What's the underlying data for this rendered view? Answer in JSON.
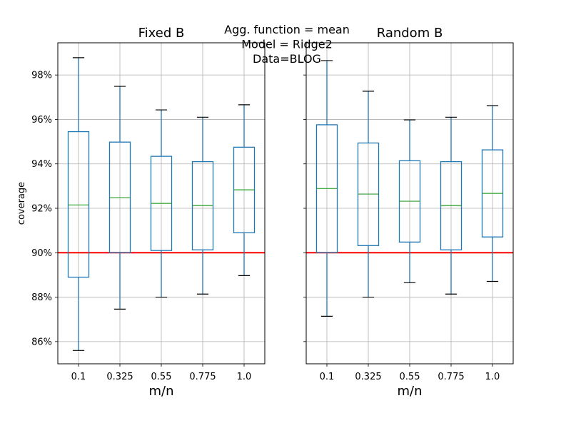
{
  "chart_data": {
    "type": "box",
    "suptitle": [
      "Agg. function = mean",
      "Model = Ridge2",
      "Data=BLOG"
    ],
    "ylabel": "coverage",
    "ylim": [
      85,
      99.45
    ],
    "yticks": [
      86,
      88,
      90,
      92,
      94,
      96,
      98
    ],
    "ytick_labels": [
      "86%",
      "88%",
      "90%",
      "92%",
      "94%",
      "96%",
      "98%"
    ],
    "grid": true,
    "reference_line": {
      "value": 90,
      "color": "#ff0000"
    },
    "colors": {
      "box": "#1f77b4",
      "median": "#2ca02c",
      "cap": "#000000",
      "grid": "#b0b0b0"
    },
    "panels": [
      {
        "title": "Fixed B",
        "xlabel": "m/n",
        "categories": [
          "0.1",
          "0.325",
          "0.55",
          "0.775",
          "1.0"
        ],
        "boxes": [
          {
            "whislo": 85.6,
            "q1": 88.9,
            "med": 92.15,
            "q3": 95.45,
            "whishi": 98.78
          },
          {
            "whislo": 87.46,
            "q1": 90.0,
            "med": 92.48,
            "q3": 94.98,
            "whishi": 97.49
          },
          {
            "whislo": 88.0,
            "q1": 90.1,
            "med": 92.22,
            "q3": 94.34,
            "whishi": 96.43
          },
          {
            "whislo": 88.14,
            "q1": 90.13,
            "med": 92.12,
            "q3": 94.1,
            "whishi": 96.1
          },
          {
            "whislo": 88.97,
            "q1": 90.9,
            "med": 92.83,
            "q3": 94.75,
            "whishi": 96.66
          }
        ]
      },
      {
        "title": "Random B",
        "xlabel": "m/n",
        "categories": [
          "0.1",
          "0.325",
          "0.55",
          "0.775",
          "1.0"
        ],
        "boxes": [
          {
            "whislo": 87.14,
            "q1": 90.0,
            "med": 92.89,
            "q3": 95.76,
            "whishi": 98.65
          },
          {
            "whislo": 88.0,
            "q1": 90.32,
            "med": 92.64,
            "q3": 94.94,
            "whishi": 97.27
          },
          {
            "whislo": 88.65,
            "q1": 90.48,
            "med": 92.32,
            "q3": 94.14,
            "whishi": 95.98
          },
          {
            "whislo": 88.14,
            "q1": 90.13,
            "med": 92.12,
            "q3": 94.1,
            "whishi": 96.1
          },
          {
            "whislo": 88.71,
            "q1": 90.71,
            "med": 92.67,
            "q3": 94.63,
            "whishi": 96.62
          }
        ]
      }
    ]
  }
}
